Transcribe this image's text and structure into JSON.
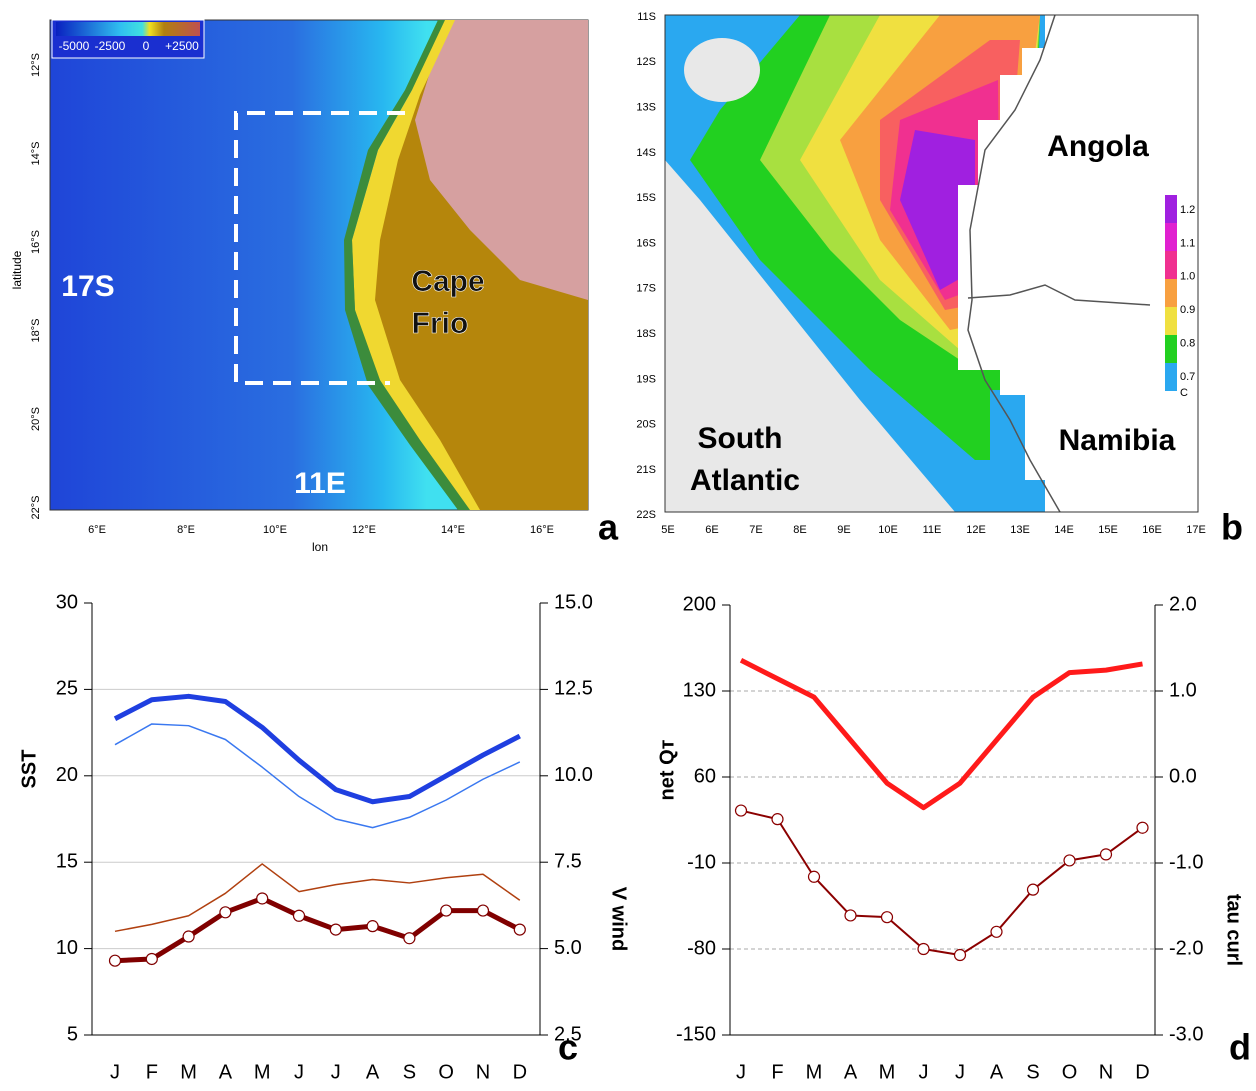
{
  "maps": [
    {
      "label": "a",
      "colorbar_labels": [
        "-5000",
        "-2500",
        "0",
        "+2500"
      ],
      "lat_labels": [
        "12°S",
        "14°S",
        "16°S",
        "18°S",
        "20°S",
        "22°S"
      ],
      "ylabel": "latitude",
      "lon_labels": [
        "6°E",
        "8°E",
        "10°E",
        "12°E",
        "14°E",
        "16°E"
      ],
      "xlabel": "lon",
      "place_west": "17S",
      "place_coast": [
        "Cape",
        "Frio"
      ],
      "place_south": "11E"
    },
    {
      "label": "b",
      "lat_labels": [
        "11S",
        "12S",
        "13S",
        "14S",
        "15S",
        "16S",
        "17S",
        "18S",
        "19S",
        "20S",
        "21S",
        "22S"
      ],
      "lon_labels": [
        "5E",
        "6E",
        "7E",
        "8E",
        "9E",
        "10E",
        "11E",
        "12E",
        "13E",
        "14E",
        "15E",
        "16E",
        "17E"
      ],
      "colorbar_labels": [
        "1.2",
        "1.1",
        "1.0",
        "0.9",
        "0.8",
        "0.7"
      ],
      "colorbar_unit": "C",
      "places": [
        "Angola",
        "Namibia"
      ],
      "ocean": [
        "South",
        "Atlantic"
      ]
    }
  ],
  "chart_data": [
    {
      "type": "line",
      "label": "c",
      "ylabel": "SST",
      "y2label": "V wind",
      "categories": [
        "J",
        "F",
        "M",
        "A",
        "M",
        "J",
        "J",
        "A",
        "S",
        "O",
        "N",
        "D"
      ],
      "ylim": [
        5,
        30
      ],
      "yticks": [
        5,
        10,
        15,
        20,
        25,
        30
      ],
      "y2lim": [
        2.5,
        15
      ],
      "y2ticks": [
        2.5,
        {
          "value": 5,
          "label": "5.0"
        },
        7.5,
        {
          "value": 10,
          "label": "10.0"
        },
        12.5,
        {
          "value": 15,
          "label": "15.0"
        }
      ],
      "grid": "solid",
      "series": [
        {
          "color": "#1f3fe0",
          "width": 5,
          "values": [
            23.3,
            24.4,
            24.6,
            24.3,
            22.8,
            20.9,
            19.2,
            18.5,
            18.8,
            20.0,
            21.2,
            22.3
          ]
        },
        {
          "color": "#3a78f0",
          "width": 1.5,
          "values": [
            21.8,
            23.0,
            22.9,
            22.1,
            20.5,
            18.8,
            17.5,
            17.0,
            17.6,
            18.6,
            19.8,
            20.8
          ]
        },
        {
          "color": "#b04010",
          "width": 1.5,
          "axis": "y2",
          "values": [
            5.5,
            5.7,
            5.95,
            6.6,
            7.45,
            6.65,
            6.85,
            7.0,
            6.9,
            7.05,
            7.15,
            6.4
          ]
        },
        {
          "color": "#800000",
          "width": 5,
          "axis": "y2",
          "markers": true,
          "values": [
            4.65,
            4.7,
            5.35,
            6.05,
            6.45,
            5.95,
            5.55,
            5.65,
            5.3,
            6.1,
            6.1,
            5.55
          ]
        }
      ]
    },
    {
      "type": "line",
      "label": "d",
      "ylabel": "net Qт",
      "y2label": "tau curl",
      "categories": [
        "J",
        "F",
        "M",
        "A",
        "M",
        "J",
        "J",
        "A",
        "S",
        "O",
        "N",
        "D"
      ],
      "ylim": [
        -150,
        200
      ],
      "yticks": [
        -150,
        -80,
        -10,
        60,
        130,
        200
      ],
      "y2lim": [
        -3,
        2
      ],
      "y2ticks": [
        {
          "value": -3,
          "label": "-3.0"
        },
        {
          "value": -2,
          "label": "-2.0"
        },
        {
          "value": -1,
          "label": "-1.0"
        },
        {
          "value": 0,
          "label": "0.0"
        },
        {
          "value": 1,
          "label": "1.0"
        },
        {
          "value": 2,
          "label": "2.0"
        }
      ],
      "grid": "dashed",
      "series": [
        {
          "color": "#ff1a1a",
          "width": 5,
          "values": [
            155,
            140,
            125,
            90,
            55,
            35,
            55,
            90,
            125,
            145,
            147,
            152
          ]
        },
        {
          "color": "#8b0000",
          "width": 2,
          "axis": "y2",
          "markers": true,
          "values": [
            -0.39,
            -0.49,
            -1.16,
            -1.61,
            -1.63,
            -2.0,
            -2.07,
            -1.8,
            -1.31,
            -0.97,
            -0.9,
            -0.59
          ]
        }
      ]
    }
  ]
}
